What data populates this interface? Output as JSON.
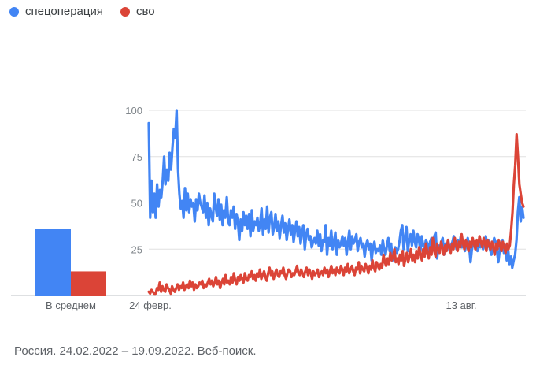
{
  "legend": [
    {
      "name": "спецоперация",
      "color": "#4285f4"
    },
    {
      "name": "сво",
      "color": "#db4437"
    }
  ],
  "averages": {
    "label": "В среднем",
    "values": [
      36,
      13
    ]
  },
  "footer": "Россия. 24.02.2022 – 19.09.2022. Веб-поиск.",
  "chart_data": {
    "type": "line",
    "x_tick_labels": [
      "24 февр.",
      "13 авг."
    ],
    "y_ticks": [
      25,
      50,
      75,
      100
    ],
    "ylim": [
      0,
      100
    ],
    "grid": true,
    "legend_position": "top-left",
    "series": [
      {
        "name": "спецоперация",
        "color": "#4285f4",
        "values": [
          93,
          42,
          62,
          45,
          55,
          42,
          60,
          48,
          57,
          53,
          62,
          75,
          60,
          68,
          62,
          77,
          68,
          80,
          90,
          85,
          100,
          68,
          55,
          47,
          51,
          42,
          58,
          46,
          55,
          45,
          52,
          48,
          50,
          40,
          52,
          46,
          55,
          50,
          48,
          45,
          54,
          42,
          50,
          38,
          47,
          43,
          40,
          55,
          48,
          43,
          52,
          41,
          49,
          38,
          46,
          42,
          53,
          40,
          38,
          46,
          42,
          48,
          36,
          44,
          40,
          30,
          41,
          35,
          45,
          38,
          43,
          36,
          44,
          32,
          46,
          35,
          40,
          38,
          42,
          35,
          39,
          47,
          33,
          41,
          36,
          48,
          34,
          42,
          45,
          33,
          37,
          44,
          35,
          40,
          31,
          38,
          43,
          34,
          39,
          30,
          36,
          41,
          33,
          38,
          29,
          35,
          40,
          32,
          37,
          28,
          34,
          38,
          25,
          33,
          36,
          30,
          32,
          26,
          29,
          31,
          28,
          35,
          27,
          33,
          24,
          30,
          29,
          38,
          22,
          31,
          27,
          35,
          25,
          29,
          34,
          22,
          30,
          26,
          28,
          32,
          27,
          31,
          22,
          29,
          35,
          25,
          32,
          28,
          30,
          33,
          24,
          29,
          31,
          26,
          28,
          21,
          27,
          30,
          25,
          28,
          19,
          26,
          29,
          23,
          25,
          24,
          27,
          22,
          30,
          25,
          22,
          27,
          31,
          24,
          28,
          19,
          22,
          26,
          23,
          25,
          29,
          35,
          38,
          25,
          31,
          37,
          24,
          30,
          33,
          27,
          35,
          29,
          26,
          33,
          30,
          24,
          32,
          27,
          25,
          30,
          28,
          23,
          29,
          31,
          26,
          32,
          34,
          20,
          27,
          25,
          29,
          31,
          22,
          28,
          26,
          30,
          24,
          27,
          29,
          32,
          28,
          25,
          30,
          27,
          32,
          26,
          29,
          24,
          28,
          31,
          27,
          18,
          25,
          28,
          29,
          27,
          24,
          30,
          26,
          29,
          25,
          28,
          32,
          26,
          30,
          25,
          22,
          27,
          31,
          29,
          24,
          18,
          25,
          28,
          30,
          23,
          27,
          19,
          25,
          17,
          21,
          15,
          19,
          22,
          30,
          45,
          53,
          40,
          48,
          42
        ]
      },
      {
        "name": "сво",
        "color": "#db4437",
        "values": [
          2,
          1,
          3,
          2,
          1,
          1,
          4,
          3,
          7,
          2,
          5,
          3,
          2,
          6,
          4,
          3,
          1,
          5,
          3,
          2,
          4,
          6,
          3,
          5,
          4,
          7,
          3,
          5,
          6,
          4,
          8,
          5,
          7,
          3,
          6,
          4,
          5,
          7,
          6,
          8,
          4,
          6,
          5,
          7,
          9,
          6,
          8,
          5,
          7,
          10,
          6,
          8,
          4,
          7,
          9,
          6,
          11,
          7,
          8,
          6,
          10,
          7,
          12,
          8,
          6,
          10,
          8,
          11,
          9,
          7,
          12,
          9,
          8,
          11,
          10,
          13,
          9,
          11,
          8,
          12,
          10,
          14,
          9,
          11,
          13,
          10,
          8,
          12,
          15,
          11,
          13,
          9,
          12,
          14,
          11,
          10,
          13,
          12,
          15,
          11,
          9,
          12,
          14,
          13,
          10,
          12,
          11,
          13,
          16,
          12,
          11,
          14,
          12,
          10,
          13,
          15,
          11,
          14,
          12,
          9,
          13,
          11,
          12,
          14,
          10,
          12,
          13,
          11,
          15,
          12,
          14,
          10,
          13,
          16,
          12,
          14,
          11,
          15,
          13,
          12,
          16,
          14,
          11,
          15,
          13,
          17,
          12,
          14,
          16,
          13,
          11,
          15,
          14,
          18,
          12,
          16,
          14,
          13,
          17,
          15,
          12,
          16,
          14,
          19,
          15,
          13,
          18,
          16,
          14,
          17,
          15,
          22,
          18,
          16,
          20,
          17,
          23,
          19,
          21,
          25,
          18,
          20,
          17,
          22,
          19,
          24,
          16,
          20,
          23,
          18,
          21,
          25,
          19,
          22,
          18,
          24,
          20,
          26,
          22,
          19,
          25,
          21,
          28,
          23,
          20,
          26,
          22,
          31,
          24,
          21,
          28,
          25,
          23,
          29,
          26,
          22,
          27,
          24,
          30,
          26,
          23,
          28,
          25,
          31,
          27,
          24,
          29,
          26,
          33,
          28,
          25,
          30,
          27,
          24,
          29,
          26,
          31,
          28,
          25,
          30,
          27,
          32,
          29,
          26,
          31,
          28,
          24,
          30,
          27,
          25,
          29,
          26,
          22,
          28,
          25,
          30,
          27,
          24,
          29,
          26,
          23,
          28,
          25,
          27,
          35,
          45,
          60,
          70,
          87,
          75,
          60,
          55,
          50,
          48
        ]
      }
    ]
  }
}
